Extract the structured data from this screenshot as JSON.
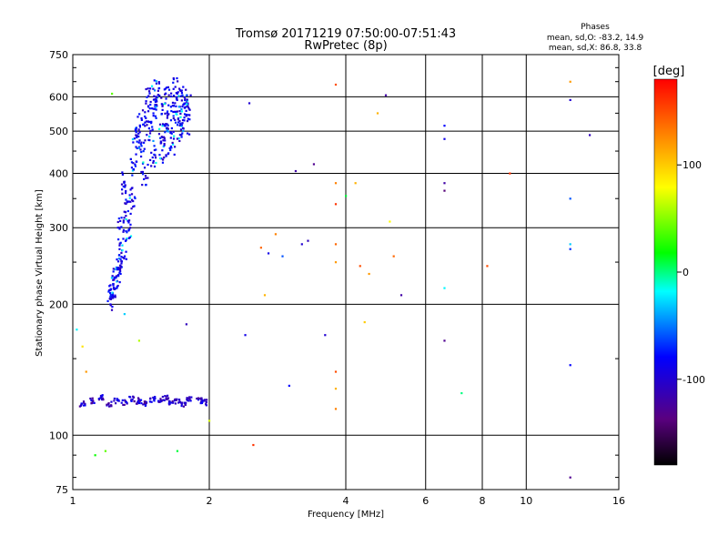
{
  "chart_data": {
    "type": "scatter",
    "title": "Tromsø 20171219 07:50:00-07:51:43",
    "subtitle": "RwPretec (8p)",
    "stats": {
      "heading": "Phases",
      "line_o": "mean, sd,O: -83.2, 14.9",
      "line_x": "mean, sd,X: 86.8, 33.8"
    },
    "xlabel": "Frequency [MHz]",
    "ylabel": "Stationary phase Virtual Height [km]",
    "x_scale": "log",
    "y_scale": "log",
    "xlim": [
      1,
      16
    ],
    "ylim": [
      75,
      750
    ],
    "x_ticks": [
      1,
      2,
      4,
      6,
      8,
      10,
      16
    ],
    "y_ticks": [
      75,
      100,
      200,
      300,
      400,
      500,
      600,
      750
    ],
    "grid": true,
    "colorbar": {
      "label": "[deg]",
      "range": [
        -180,
        180
      ],
      "ticks": [
        100,
        0,
        -100
      ]
    },
    "echo_trace_dense": [
      [
        1.3,
        380
      ],
      [
        1.32,
        330
      ],
      [
        1.33,
        300
      ],
      [
        1.35,
        350
      ],
      [
        1.36,
        420
      ],
      [
        1.38,
        480
      ],
      [
        1.4,
        520
      ],
      [
        1.42,
        460
      ],
      [
        1.44,
        400
      ],
      [
        1.45,
        540
      ],
      [
        1.47,
        600
      ],
      [
        1.48,
        500
      ],
      [
        1.5,
        440
      ],
      [
        1.52,
        560
      ],
      [
        1.53,
        620
      ],
      [
        1.55,
        580
      ],
      [
        1.57,
        500
      ],
      [
        1.58,
        450
      ],
      [
        1.6,
        540
      ],
      [
        1.62,
        600
      ],
      [
        1.64,
        520
      ],
      [
        1.65,
        470
      ],
      [
        1.67,
        580
      ],
      [
        1.69,
        630
      ],
      [
        1.7,
        550
      ],
      [
        1.72,
        500
      ],
      [
        1.74,
        600
      ],
      [
        1.76,
        560
      ],
      [
        1.78,
        520
      ],
      [
        1.8,
        590
      ],
      [
        1.28,
        300
      ],
      [
        1.29,
        270
      ],
      [
        1.27,
        250
      ],
      [
        1.26,
        240
      ],
      [
        1.25,
        230
      ],
      [
        1.24,
        220
      ],
      [
        1.22,
        210
      ],
      [
        1.21,
        205
      ]
    ],
    "echo_trace_low": [
      [
        1.05,
        118
      ],
      [
        1.1,
        120
      ],
      [
        1.15,
        122
      ],
      [
        1.2,
        118
      ],
      [
        1.25,
        120
      ],
      [
        1.3,
        119
      ],
      [
        1.35,
        121
      ],
      [
        1.4,
        120
      ],
      [
        1.45,
        118
      ],
      [
        1.5,
        121
      ],
      [
        1.55,
        120
      ],
      [
        1.6,
        122
      ],
      [
        1.65,
        119
      ],
      [
        1.7,
        120
      ],
      [
        1.75,
        118
      ],
      [
        1.8,
        121
      ],
      [
        1.9,
        120
      ],
      [
        1.95,
        119
      ]
    ],
    "scattered_points": [
      [
        1.22,
        610,
        40
      ],
      [
        1.3,
        190,
        -30
      ],
      [
        1.4,
        165,
        60
      ],
      [
        1.02,
        175,
        -20
      ],
      [
        1.05,
        160,
        90
      ],
      [
        1.07,
        140,
        120
      ],
      [
        1.12,
        90,
        20
      ],
      [
        1.18,
        92,
        40
      ],
      [
        1.7,
        92,
        10
      ],
      [
        1.78,
        180,
        -110
      ],
      [
        2.0,
        108,
        70
      ],
      [
        2.45,
        580,
        -100
      ],
      [
        2.6,
        270,
        140
      ],
      [
        2.65,
        210,
        110
      ],
      [
        2.7,
        262,
        -90
      ],
      [
        2.8,
        290,
        130
      ],
      [
        2.9,
        258,
        -60
      ],
      [
        3.0,
        130,
        -80
      ],
      [
        3.1,
        405,
        -120
      ],
      [
        3.2,
        275,
        -100
      ],
      [
        3.3,
        280,
        -110
      ],
      [
        3.4,
        420,
        -130
      ],
      [
        3.6,
        170,
        -100
      ],
      [
        3.8,
        640,
        150
      ],
      [
        3.8,
        380,
        130
      ],
      [
        3.8,
        340,
        160
      ],
      [
        3.8,
        275,
        140
      ],
      [
        3.8,
        250,
        120
      ],
      [
        3.8,
        140,
        150
      ],
      [
        3.8,
        115,
        130
      ],
      [
        3.8,
        128,
        110
      ],
      [
        4.0,
        355,
        10
      ],
      [
        4.2,
        380,
        110
      ],
      [
        4.3,
        245,
        150
      ],
      [
        4.4,
        182,
        100
      ],
      [
        4.5,
        235,
        120
      ],
      [
        4.7,
        550,
        110
      ],
      [
        4.9,
        605,
        -120
      ],
      [
        5.0,
        310,
        80
      ],
      [
        5.1,
        258,
        140
      ],
      [
        5.3,
        210,
        -120
      ],
      [
        6.6,
        515,
        -80
      ],
      [
        6.6,
        480,
        -90
      ],
      [
        6.6,
        380,
        -120
      ],
      [
        6.6,
        365,
        -140
      ],
      [
        6.6,
        218,
        -20
      ],
      [
        6.6,
        165,
        -130
      ],
      [
        7.2,
        125,
        0
      ],
      [
        8.2,
        245,
        150
      ],
      [
        9.2,
        400,
        160
      ],
      [
        12.5,
        650,
        120
      ],
      [
        12.5,
        590,
        -100
      ],
      [
        12.5,
        350,
        -60
      ],
      [
        12.5,
        275,
        -30
      ],
      [
        12.5,
        268,
        -70
      ],
      [
        12.5,
        145,
        -80
      ],
      [
        12.5,
        80,
        -130
      ],
      [
        13.8,
        490,
        -110
      ],
      [
        2.4,
        170,
        -90
      ],
      [
        2.5,
        95,
        160
      ]
    ]
  }
}
